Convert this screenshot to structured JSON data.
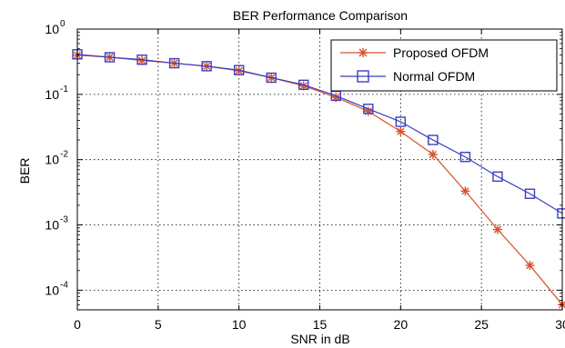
{
  "chart_data": {
    "type": "line",
    "title": "BER Performance Comparison",
    "xlabel": "SNR in dB",
    "ylabel": "BER",
    "xlim": [
      0,
      30
    ],
    "ylim": [
      5e-05,
      1
    ],
    "yscale": "log",
    "grid": true,
    "legend_position": "top-right",
    "x_ticks": [
      0,
      5,
      10,
      15,
      20,
      25,
      30
    ],
    "x_tick_labels": [
      "0",
      "5",
      "10",
      "15",
      "20",
      "25",
      "30"
    ],
    "y_ticks": [
      1,
      0.1,
      0.01,
      0.001,
      0.0001
    ],
    "y_tick_bases": [
      "10",
      "10",
      "10",
      "10",
      "10"
    ],
    "y_tick_exponents": [
      "0",
      "-1",
      "-2",
      "-3",
      "-4"
    ],
    "x": [
      0,
      2,
      4,
      6,
      8,
      10,
      12,
      14,
      16,
      18,
      20,
      22,
      24,
      26,
      28,
      30
    ],
    "series": [
      {
        "name": "Proposed OFDM",
        "color": "#d9512c",
        "marker": "asterisk",
        "values": [
          0.4,
          0.37,
          0.33,
          0.3,
          0.27,
          0.23,
          0.18,
          0.135,
          0.09,
          0.055,
          0.027,
          0.012,
          0.0033,
          0.00085,
          0.00024,
          6e-05
        ]
      },
      {
        "name": "Normal OFDM",
        "color": "#3b3fc0",
        "marker": "square",
        "values": [
          0.41,
          0.37,
          0.34,
          0.3,
          0.27,
          0.235,
          0.18,
          0.14,
          0.095,
          0.06,
          0.038,
          0.02,
          0.011,
          0.0055,
          0.003,
          0.0015
        ]
      }
    ]
  }
}
